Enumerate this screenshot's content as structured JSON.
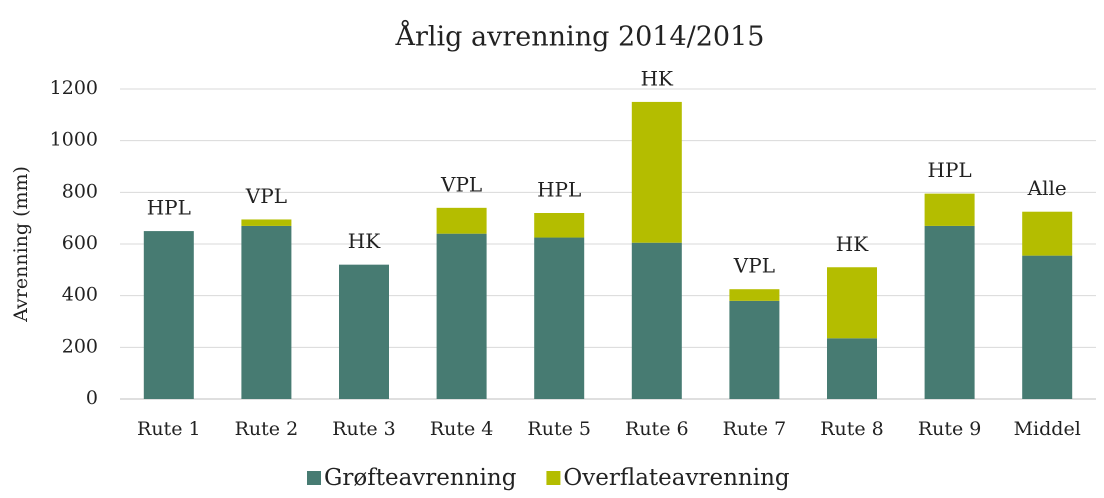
{
  "chart_data": {
    "type": "stacked_bar",
    "title": "Årlig avrenning 2014/2015",
    "ylabel": "Avrenning (mm)",
    "categories": [
      "Rute 1",
      "Rute 2",
      "Rute 3",
      "Rute 4",
      "Rute 5",
      "Rute 6",
      "Rute 7",
      "Rute 8",
      "Rute 9",
      "Middel"
    ],
    "series": [
      {
        "name": "Grøfteavrenning",
        "color": "#477b72",
        "values": [
          650,
          670,
          520,
          640,
          625,
          605,
          380,
          235,
          670,
          555
        ]
      },
      {
        "name": "Overflateavrenning",
        "color": "#b4bd00",
        "values": [
          0,
          25,
          0,
          100,
          95,
          545,
          45,
          275,
          125,
          170
        ]
      }
    ],
    "bar_labels": [
      "HPL",
      "VPL",
      "HK",
      "VPL",
      "HPL",
      "HK",
      "VPL",
      "HK",
      "HPL",
      "Alle"
    ],
    "ylim": [
      0,
      1200
    ],
    "yticks": [
      0,
      200,
      400,
      600,
      800,
      1000,
      1200
    ],
    "grid": true,
    "legend": "bottom"
  }
}
